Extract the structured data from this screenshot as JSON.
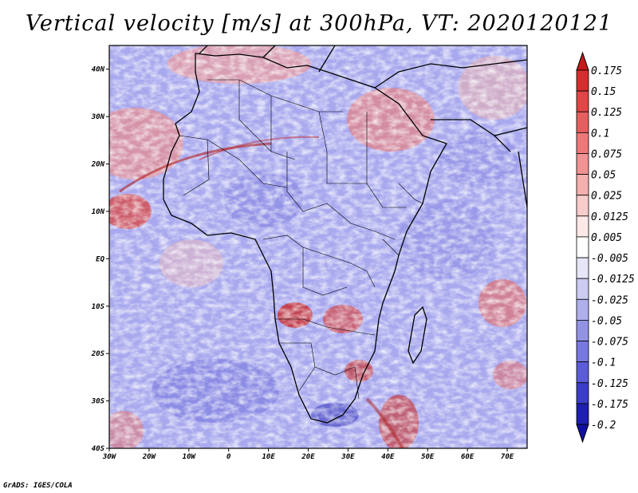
{
  "title": "Vertical velocity [m/s] at 300hPa, VT: 2020120121",
  "credit": "GrADS: IGES/COLA",
  "map": {
    "lat_labels": [
      "40N",
      "30N",
      "20N",
      "10N",
      "EQ",
      "10S",
      "20S",
      "30S",
      "40S"
    ],
    "lon_labels": [
      "30W",
      "20W",
      "10W",
      "0",
      "10E",
      "20E",
      "30E",
      "40E",
      "50E",
      "60E",
      "70E"
    ],
    "lat_range": [
      -40,
      45
    ],
    "lon_range": [
      -30,
      75
    ]
  },
  "colorbar": {
    "labels": [
      "0.175",
      "0.15",
      "0.125",
      "0.1",
      "0.075",
      "0.05",
      "0.025",
      "0.0125",
      "0.005",
      "-0.005",
      "-0.0125",
      "-0.025",
      "-0.05",
      "-0.075",
      "-0.1",
      "-0.125",
      "-0.175",
      "-0.2"
    ],
    "colors": [
      "#c41a1a",
      "#d42e2e",
      "#e04646",
      "#e65f5f",
      "#ec7878",
      "#f19393",
      "#f5afaf",
      "#f9cccc",
      "#fde8e8",
      "#ffffff",
      "#e6e6f8",
      "#ccccf2",
      "#afafec",
      "#9393e6",
      "#7878e0",
      "#5c5cd8",
      "#3c3cc8",
      "#1e1eb0",
      "#1010a0"
    ]
  }
}
